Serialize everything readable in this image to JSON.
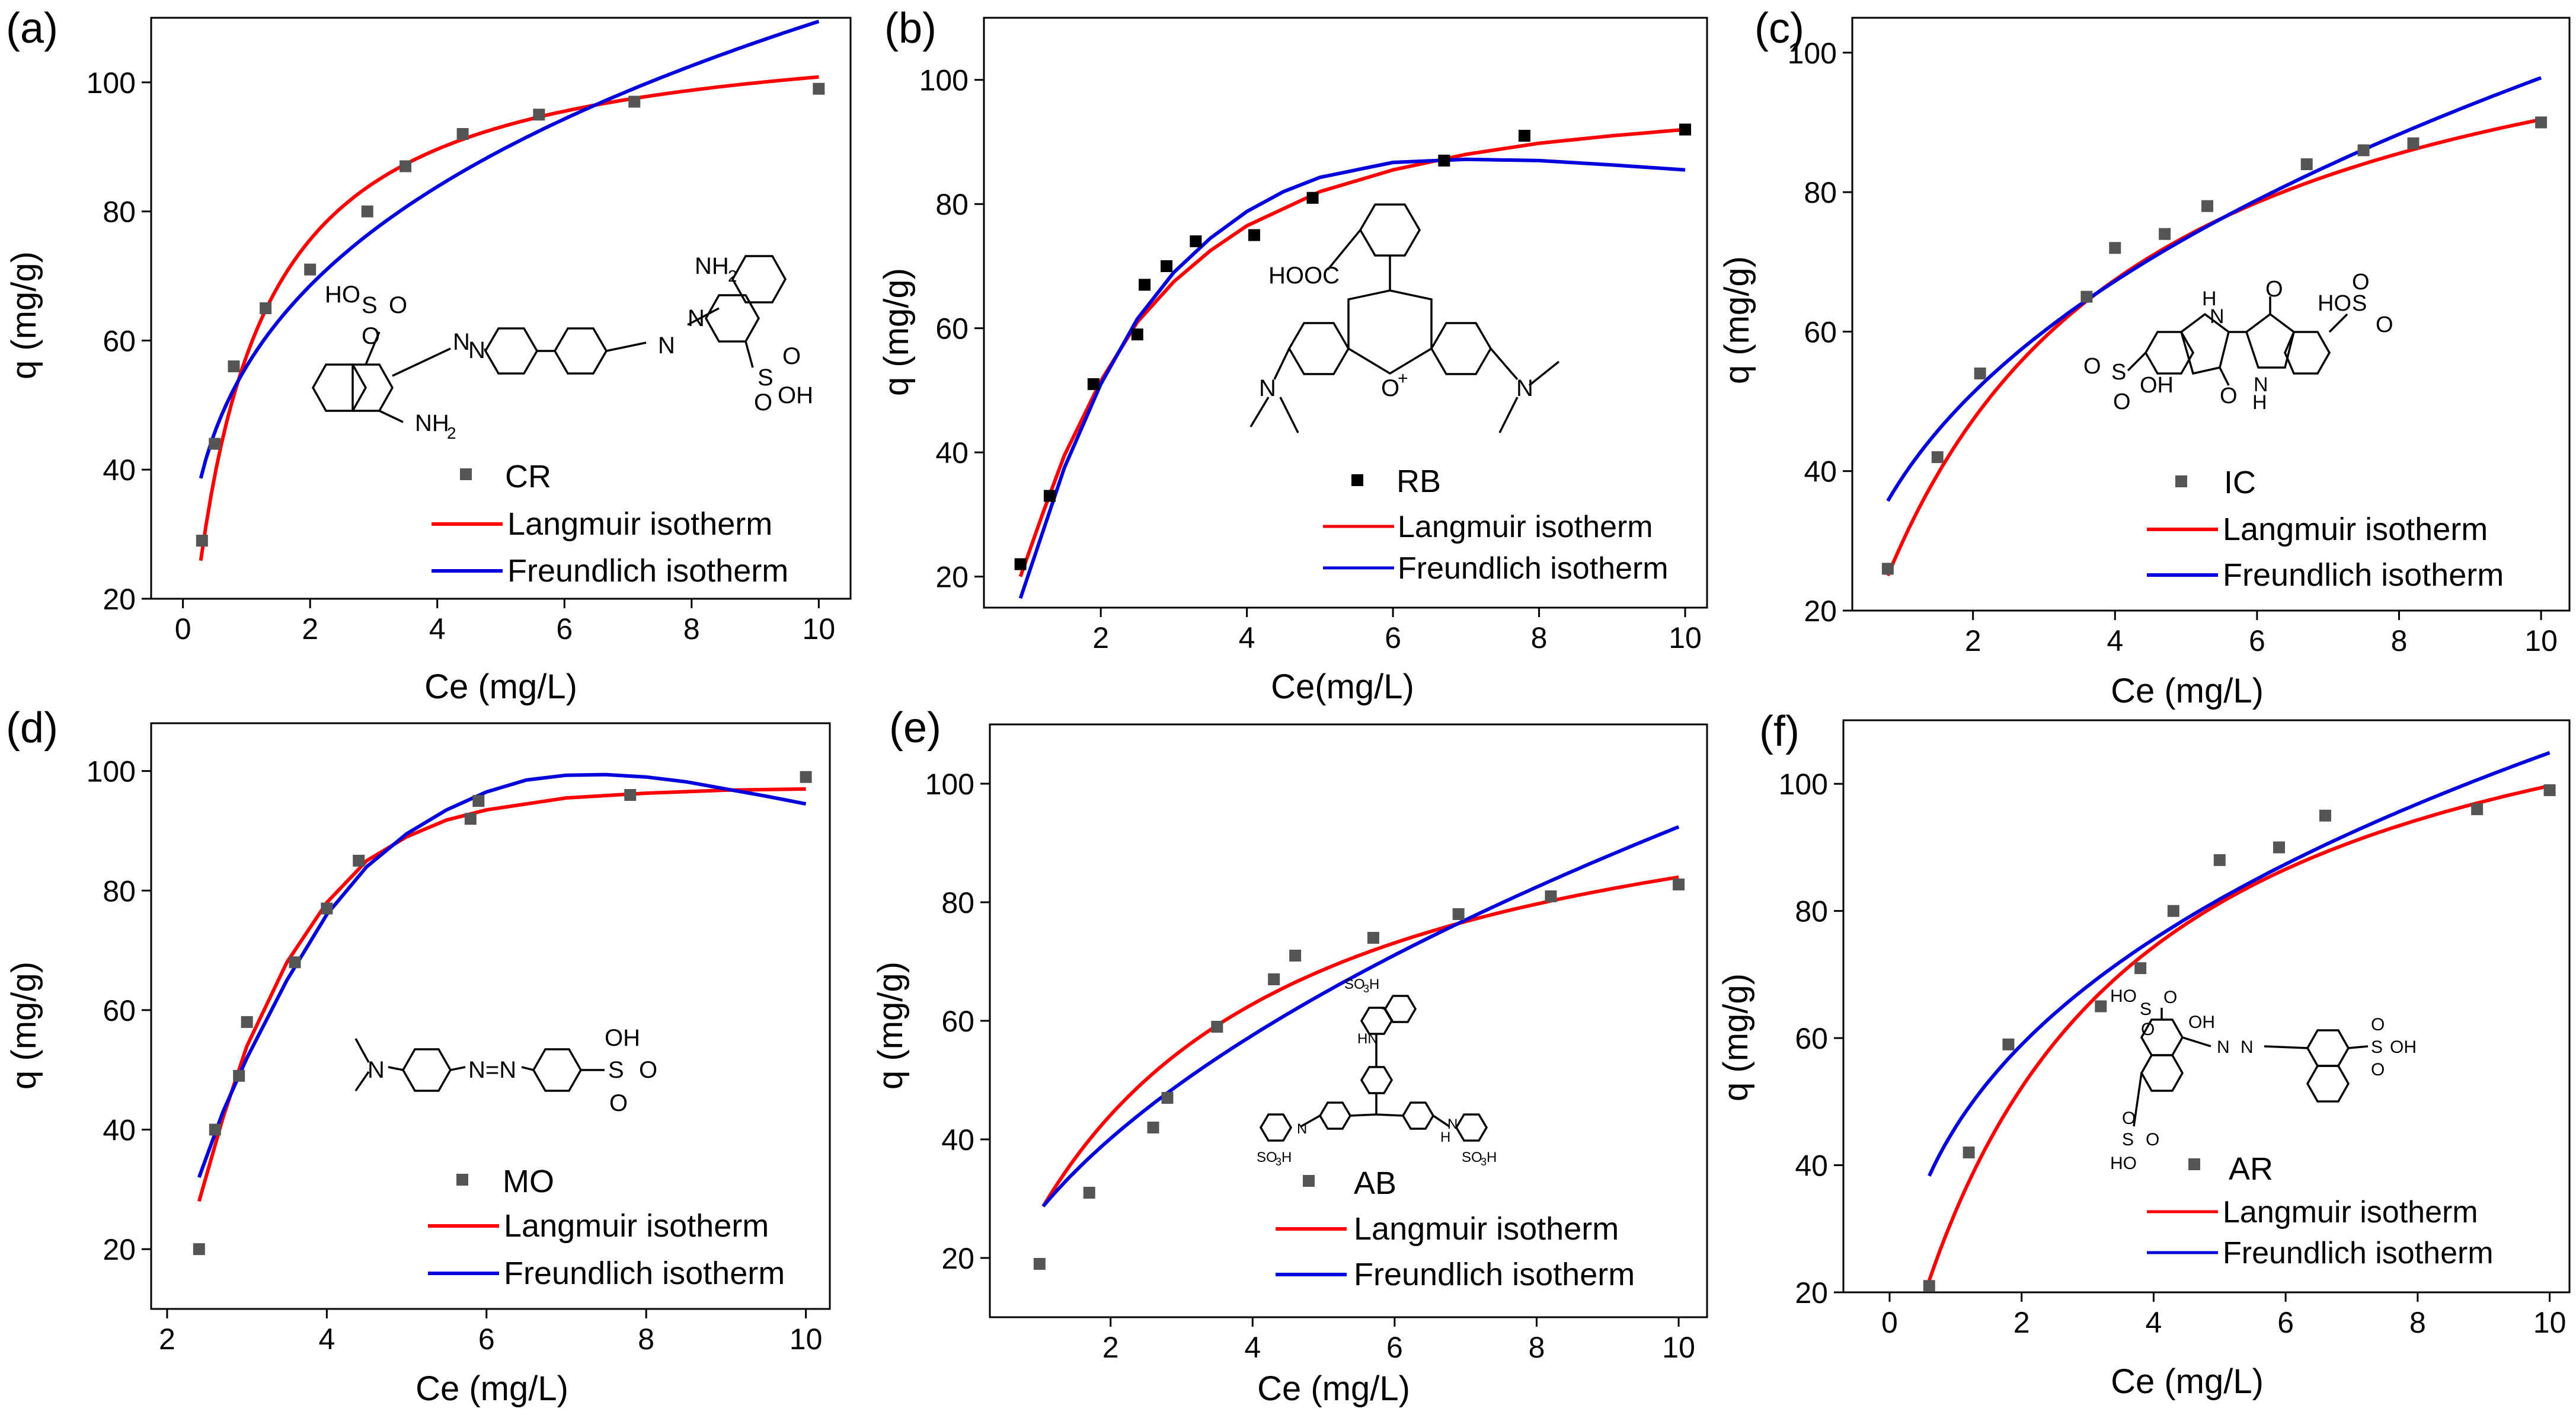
{
  "colors": {
    "langmuir": "#ff0000",
    "freundlich": "#0000dd",
    "points": "#555555",
    "points_dark": "#000000"
  },
  "chart_data": [
    {
      "panel": "(a)",
      "type": "scatter",
      "dye": "CR",
      "xlabel": "Ce (mg/L)",
      "ylabel": "q (mg/g)",
      "xlim": [
        -0.5,
        10.5
      ],
      "ylim": [
        20,
        110
      ],
      "xticks": [
        0,
        2,
        4,
        6,
        8,
        10
      ],
      "yticks": [
        20,
        40,
        60,
        80,
        100
      ],
      "marker_icon": "square-marker-icon",
      "marker_color": "points",
      "legend": {
        "marker": "CR",
        "langmuir": "Langmuir isotherm",
        "freundlich": "Freundlich isotherm"
      },
      "points": {
        "x": [
          0.3,
          0.5,
          0.8,
          1.3,
          2.0,
          2.9,
          3.5,
          4.4,
          5.6,
          7.1,
          10.0
        ],
        "y": [
          29,
          44,
          56,
          65,
          71,
          80,
          87,
          92,
          95,
          97,
          99
        ]
      },
      "series": [
        {
          "name": "Langmuir isotherm",
          "color": "langmuir",
          "model": "langmuir",
          "qm": 110,
          "K": 1.1,
          "xrange": [
            0.28,
            10.0
          ]
        },
        {
          "name": "Freundlich isotherm",
          "color": "freundlich",
          "model": "freundlich",
          "Kf": 56.0,
          "n": 0.291,
          "xrange": [
            0.28,
            10.0
          ]
        }
      ]
    },
    {
      "panel": "(b)",
      "type": "scatter",
      "dye": "RB",
      "xlabel": "Ce(mg/L)",
      "ylabel": "q  (mg/g)",
      "xlim": [
        0.4,
        10.3
      ],
      "ylim": [
        15,
        110
      ],
      "xticks": [
        2,
        4,
        6,
        8,
        10
      ],
      "yticks": [
        20,
        40,
        60,
        80,
        100
      ],
      "marker_icon": "square-marker-icon",
      "marker_color": "points_dark",
      "legend": {
        "marker": "RB",
        "langmuir": "Langmuir isotherm",
        "freundlich": "Freundlich isotherm"
      },
      "points": {
        "x": [
          0.9,
          1.3,
          1.9,
          2.5,
          2.6,
          2.9,
          3.3,
          4.1,
          4.9,
          6.7,
          7.8,
          10.0
        ],
        "y": [
          22,
          33,
          51,
          59,
          67,
          70,
          74,
          75,
          81,
          87,
          91,
          92
        ]
      },
      "series": [
        {
          "name": "Langmuir isotherm",
          "color": "langmuir",
          "model": "points",
          "x": [
            0.9,
            1.2,
            1.5,
            2.0,
            2.5,
            3.0,
            3.5,
            4.0,
            5.0,
            6.0,
            7.0,
            8.0,
            9.0,
            10.0
          ],
          "y": [
            20,
            30,
            39.5,
            51.5,
            61,
            67.5,
            72.5,
            76.5,
            82,
            85.5,
            88,
            89.8,
            91,
            92
          ]
        },
        {
          "name": "Freundlich isotherm",
          "color": "freundlich",
          "model": "points",
          "x": [
            0.9,
            1.2,
            1.5,
            2.0,
            2.5,
            3.0,
            3.5,
            4.0,
            4.5,
            5.0,
            6.0,
            7.0,
            8.0,
            9.0,
            10.0
          ],
          "y": [
            16.5,
            27,
            37.5,
            51,
            61.5,
            69,
            74.5,
            78.8,
            82,
            84.3,
            86.7,
            87.2,
            87,
            86.3,
            85.5
          ]
        }
      ]
    },
    {
      "panel": "(c)",
      "type": "scatter",
      "dye": "IC",
      "xlabel": "Ce (mg/L)",
      "ylabel": "q (mg/g)",
      "xlim": [
        0.3,
        10.4
      ],
      "ylim": [
        20,
        105
      ],
      "xticks": [
        2,
        4,
        6,
        8,
        10
      ],
      "yticks": [
        20,
        40,
        60,
        80,
        100
      ],
      "marker_icon": "square-marker-icon",
      "marker_color": "points",
      "legend": {
        "marker": "IC",
        "langmuir": "Langmuir isotherm",
        "freundlich": "Freundlich isotherm"
      },
      "points": {
        "x": [
          0.8,
          1.5,
          2.1,
          3.6,
          4.0,
          4.7,
          5.3,
          6.7,
          7.5,
          8.2,
          10.0
        ],
        "y": [
          26,
          42,
          54,
          65,
          72,
          74,
          78,
          84,
          86,
          87,
          90
        ]
      },
      "series": [
        {
          "name": "Langmuir isotherm",
          "color": "langmuir",
          "model": "langmuir",
          "qm": 117,
          "K": 0.34,
          "xrange": [
            0.8,
            10.0
          ]
        },
        {
          "name": "Freundlich isotherm",
          "color": "freundlich",
          "model": "freundlich",
          "Kf": 39.0,
          "n": 0.393,
          "xrange": [
            0.8,
            10.0
          ]
        }
      ]
    },
    {
      "panel": "(d)",
      "type": "scatter",
      "dye": "MO",
      "xlabel": "Ce (mg/L)",
      "ylabel": "q (mg/g)",
      "xlim": [
        1.8,
        10.3
      ],
      "ylim": [
        10,
        108
      ],
      "xticks": [
        2,
        4,
        6,
        8,
        10
      ],
      "yticks": [
        20,
        40,
        60,
        80,
        100
      ],
      "marker_icon": "square-marker-icon",
      "marker_color": "points",
      "legend": {
        "marker": "MO",
        "langmuir": "Langmuir isotherm",
        "freundlich": "Freundlich isotherm"
      },
      "points": {
        "x": [
          2.4,
          2.6,
          2.9,
          3.0,
          3.6,
          4.0,
          4.4,
          5.8,
          5.9,
          7.8,
          10.0
        ],
        "y": [
          20,
          40,
          49,
          58,
          68,
          77,
          85,
          92,
          95,
          96,
          99
        ]
      },
      "series": [
        {
          "name": "Langmuir isotherm",
          "color": "langmuir",
          "model": "points",
          "x": [
            2.4,
            2.7,
            3.0,
            3.5,
            4.0,
            4.5,
            5.0,
            5.5,
            6.0,
            7.0,
            8.0,
            9.0,
            10.0
          ],
          "y": [
            28,
            42,
            54,
            68,
            78,
            85,
            89,
            91.8,
            93.5,
            95.5,
            96.3,
            96.8,
            97
          ]
        },
        {
          "name": "Freundlich isotherm",
          "color": "freundlich",
          "model": "points",
          "x": [
            2.4,
            2.7,
            3.0,
            3.5,
            4.0,
            4.5,
            5.0,
            5.5,
            6.0,
            6.5,
            7.0,
            7.5,
            8.0,
            8.5,
            9.0,
            9.5,
            10.0
          ],
          "y": [
            32,
            43,
            52,
            65,
            76,
            84,
            89.5,
            93.5,
            96.5,
            98.5,
            99.3,
            99.4,
            99,
            98.2,
            97,
            95.8,
            94.5
          ]
        }
      ]
    },
    {
      "panel": "(e)",
      "type": "scatter",
      "dye": "AB",
      "xlabel": "Ce (mg/L)",
      "ylabel": "q (mg/g)",
      "xlim": [
        0.3,
        10.4
      ],
      "ylim": [
        10,
        110
      ],
      "xticks": [
        2,
        4,
        6,
        8,
        10
      ],
      "yticks": [
        20,
        40,
        60,
        80,
        100
      ],
      "marker_icon": "square-marker-icon",
      "marker_color": "points",
      "legend": {
        "marker": "AB",
        "langmuir": "Langmuir isotherm",
        "freundlich": "Freundlich isotherm"
      },
      "points": {
        "x": [
          1.0,
          1.7,
          2.6,
          2.8,
          3.5,
          4.3,
          4.6,
          5.7,
          6.9,
          8.2,
          10.0
        ],
        "y": [
          19,
          31,
          42,
          47,
          59,
          67,
          71,
          74,
          78,
          81,
          83
        ]
      },
      "series": [
        {
          "name": "Langmuir isotherm",
          "color": "langmuir",
          "model": "langmuir",
          "qm": 109,
          "K": 0.34,
          "xrange": [
            1.05,
            10.0
          ]
        },
        {
          "name": "Freundlich isotherm",
          "color": "freundlich",
          "model": "freundlich",
          "Kf": 28.0,
          "n": 0.52,
          "xrange": [
            1.05,
            10.0
          ]
        }
      ]
    },
    {
      "panel": "(f)",
      "type": "scatter",
      "dye": "AR",
      "xlabel": "Ce (mg/L)",
      "ylabel": "q (mg/g)",
      "xlim": [
        -0.7,
        10.3
      ],
      "ylim": [
        20,
        110
      ],
      "xticks": [
        0,
        2,
        4,
        6,
        8,
        10
      ],
      "yticks": [
        20,
        40,
        60,
        80,
        100
      ],
      "marker_icon": "square-marker-icon",
      "marker_color": "points",
      "legend": {
        "marker": "AR",
        "langmuir": "Langmuir isotherm",
        "freundlich": "Freundlich isotherm"
      },
      "points": {
        "x": [
          0.6,
          1.2,
          1.8,
          3.2,
          3.8,
          4.3,
          5.0,
          5.9,
          6.6,
          8.9,
          10.0
        ],
        "y": [
          21,
          42,
          59,
          65,
          71,
          80,
          88,
          90,
          95,
          96,
          99
        ]
      },
      "series": [
        {
          "name": "Langmuir isotherm",
          "color": "langmuir",
          "model": "langmuir",
          "qm": 129,
          "K": 0.34,
          "xrange": [
            0.6,
            10.0
          ]
        },
        {
          "name": "Freundlich isotherm",
          "color": "freundlich",
          "model": "freundlich",
          "Kf": 46.0,
          "n": 0.358,
          "xrange": [
            0.6,
            10.0
          ]
        }
      ]
    }
  ],
  "structures": {
    "CR": {
      "labels": [
        "HO",
        "S",
        "O",
        "O",
        "N",
        "N",
        "NH",
        "2",
        "N",
        "N",
        "NH",
        "2",
        "S",
        "O",
        "O",
        "OH"
      ]
    },
    "RB": {
      "labels": [
        "HOOC",
        "N",
        "O",
        "+",
        "N"
      ]
    },
    "IC": {
      "labels": [
        "H",
        "N",
        "O",
        "HO",
        "S",
        "O",
        "O",
        "S",
        "O",
        "O",
        "OH",
        "O",
        "N",
        "H"
      ]
    },
    "MO": {
      "labels": [
        "N",
        "N=N",
        "S",
        "OH",
        "O",
        "O"
      ]
    },
    "AB": {
      "labels": [
        "SO",
        "3",
        "H",
        "HN",
        "N",
        "SO",
        "3",
        "H",
        "H",
        "N",
        "SO",
        "3",
        "H"
      ]
    },
    "AR": {
      "labels": [
        "HO",
        "S",
        "O",
        "O",
        "OH",
        "N",
        "N",
        "S",
        "O",
        "O",
        "OH",
        "S",
        "O",
        "O",
        "HO"
      ]
    }
  }
}
